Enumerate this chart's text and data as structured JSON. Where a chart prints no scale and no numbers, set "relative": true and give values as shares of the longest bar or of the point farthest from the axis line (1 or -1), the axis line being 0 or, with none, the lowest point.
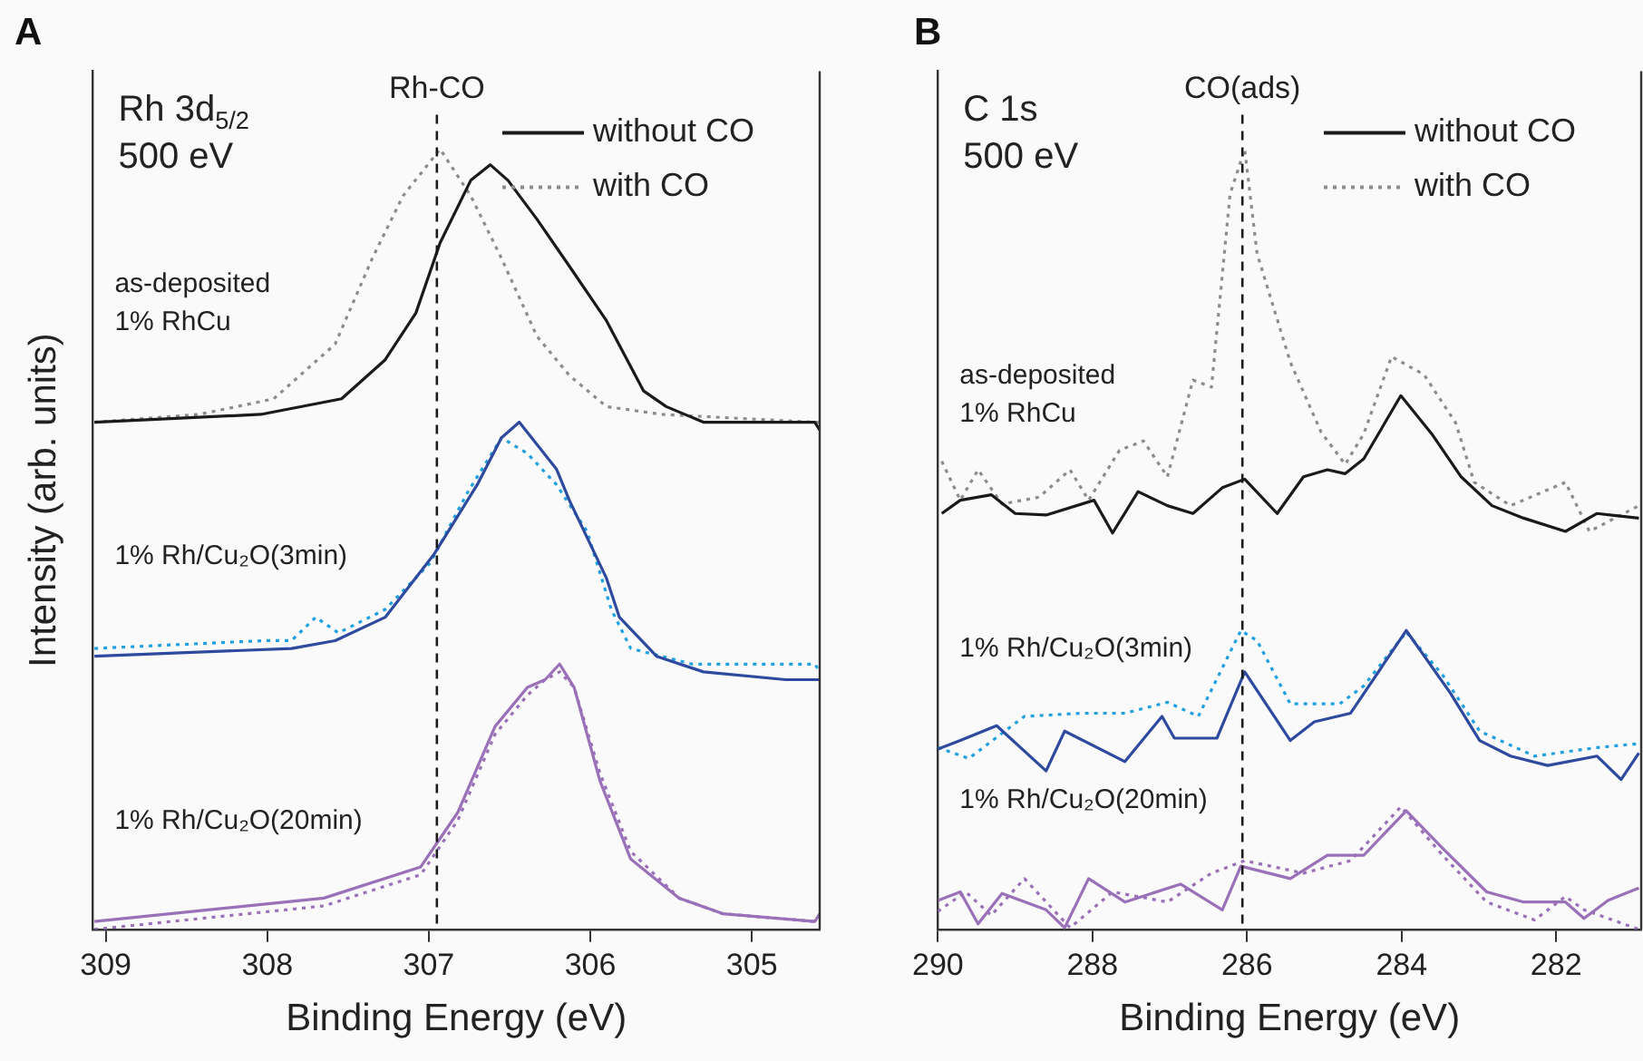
{
  "chart_data": [
    {
      "type": "line",
      "title": "A",
      "xlabel": "Binding Energy (eV)",
      "ylabel": "Intensity (arb. units)",
      "relative": true,
      "xlim": [
        309.08,
        304.58
      ],
      "xticks": [
        309,
        308,
        307,
        306,
        305
      ],
      "legend": "top right",
      "annotations": [
        "Rh 3d$_{5/2}$",
        "500 eV",
        "as-deposited\n1% RhCu",
        "1% Rh/Cu₂O(3min)",
        "1% Rh/Cu₂O(20min)"
      ],
      "ref_lines": [
        {
          "axis": "x",
          "value": 306.95,
          "label": "Rh-CO",
          "line_style": "dashed",
          "color": "#1a1a1a"
        }
      ],
      "series": [
        {
          "name": "without CO",
          "color": "#1a1a1a",
          "line_style": "solid",
          "x": [
            309.07,
            308.04,
            307.54,
            307.27,
            307.08,
            306.93,
            306.74,
            306.62,
            306.51,
            306.33,
            306.13,
            305.9,
            305.67,
            305.53,
            305.3,
            304.61,
            304.58
          ],
          "values": [
            0.65,
            0.66,
            0.68,
            0.73,
            0.79,
            0.88,
            0.96,
            0.98,
            0.96,
            0.91,
            0.85,
            0.78,
            0.69,
            0.67,
            0.65,
            0.65,
            0.64
          ]
        },
        {
          "name": "with CO",
          "color": "#8c8c8c",
          "line_style": "dotted",
          "x": [
            309.07,
            308.42,
            307.96,
            307.58,
            307.35,
            307.16,
            306.93,
            306.74,
            306.55,
            306.33,
            306.13,
            305.9,
            305.56,
            304.61,
            304.58
          ],
          "values": [
            0.65,
            0.66,
            0.68,
            0.75,
            0.86,
            0.94,
            1,
            0.94,
            0.86,
            0.76,
            0.71,
            0.67,
            0.66,
            0.65,
            0.65
          ]
        },
        {
          "color": "#2e4a9e",
          "line_style": "solid",
          "x": [
            309.07,
            307.85,
            307.58,
            307.27,
            306.97,
            306.82,
            306.7,
            306.55,
            306.44,
            306.21,
            306.13,
            305.9,
            305.82,
            305.59,
            305.3,
            304.79,
            304.61,
            304.58
          ],
          "values": [
            0.35,
            0.36,
            0.37,
            0.4,
            0.48,
            0.53,
            0.57,
            0.63,
            0.65,
            0.59,
            0.55,
            0.45,
            0.4,
            0.35,
            0.33,
            0.32,
            0.32,
            0.32
          ]
        },
        {
          "color": "#1fa0e0",
          "line_style": "dotted",
          "x": [
            309.07,
            308.02,
            307.85,
            307.7,
            307.56,
            307.27,
            306.99,
            306.76,
            306.55,
            306.39,
            306.21,
            306.02,
            305.87,
            305.75,
            305.37,
            304.61,
            304.58
          ],
          "values": [
            0.36,
            0.37,
            0.37,
            0.4,
            0.38,
            0.41,
            0.47,
            0.56,
            0.63,
            0.61,
            0.57,
            0.51,
            0.41,
            0.36,
            0.34,
            0.34,
            0.33
          ]
        },
        {
          "color": "#9a70b8",
          "line_style": "solid",
          "x": [
            309.07,
            307.65,
            307.05,
            306.82,
            306.59,
            306.39,
            306.28,
            306.19,
            306.1,
            305.94,
            305.75,
            305.45,
            305.18,
            304.61,
            304.58
          ],
          "values": [
            0.01,
            0.04,
            0.08,
            0.15,
            0.26,
            0.31,
            0.32,
            0.34,
            0.31,
            0.19,
            0.09,
            0.04,
            0.02,
            0.01,
            0.02
          ]
        },
        {
          "color": "#9a70b8",
          "line_style": "dotted",
          "x": [
            309.07,
            307.65,
            307.05,
            306.82,
            306.59,
            306.39,
            306.28,
            306.19,
            306.1,
            305.94,
            305.75,
            305.45,
            305.18,
            304.61,
            304.58
          ],
          "values": [
            0,
            0.03,
            0.07,
            0.14,
            0.25,
            0.3,
            0.32,
            0.33,
            0.31,
            0.2,
            0.1,
            0.04,
            0.02,
            0.01,
            0.01
          ]
        }
      ]
    },
    {
      "type": "line",
      "title": "B",
      "xlabel": "Binding Energy (eV)",
      "relative": true,
      "xlim": [
        290,
        280.9
      ],
      "xticks": [
        290,
        288,
        286,
        284,
        282
      ],
      "legend": "top right",
      "annotations": [
        "C 1s",
        "500 eV",
        "as-deposited\n1% RhCu",
        "1% Rh/Cu₂O(3min)",
        "1% Rh/Cu₂O(20min)"
      ],
      "ref_lines": [
        {
          "axis": "x",
          "value": 286.06,
          "label": "CO(ads)",
          "line_style": "dashed",
          "color": "#1a1a1a"
        }
      ],
      "series": [
        {
          "name": "without CO",
          "color": "#1a1a1a",
          "line_style": "solid",
          "x": [
            289.95,
            289.71,
            289.31,
            289.0,
            288.6,
            287.98,
            287.74,
            287.41,
            287.03,
            286.7,
            286.32,
            286.03,
            285.61,
            285.27,
            284.96,
            284.73,
            284.49,
            284.01,
            283.61,
            283.23,
            282.83,
            282.42,
            281.88,
            281.47,
            280.93
          ],
          "values": [
            0.533,
            0.55,
            0.557,
            0.533,
            0.531,
            0.55,
            0.508,
            0.561,
            0.543,
            0.533,
            0.566,
            0.577,
            0.533,
            0.58,
            0.589,
            0.584,
            0.603,
            0.684,
            0.635,
            0.58,
            0.543,
            0.527,
            0.51,
            0.533,
            0.527
          ]
        },
        {
          "name": "with CO",
          "color": "#8c8c8c",
          "line_style": "dotted",
          "x": [
            289.95,
            289.71,
            289.48,
            289.17,
            288.69,
            288.29,
            288.05,
            287.65,
            287.34,
            287.03,
            286.7,
            286.46,
            286.22,
            286.03,
            285.87,
            285.44,
            285.04,
            284.73,
            284.49,
            284.13,
            283.71,
            283.3,
            283.06,
            282.59,
            281.88,
            281.57,
            280.93
          ],
          "values": [
            0.6,
            0.55,
            0.589,
            0.545,
            0.554,
            0.589,
            0.55,
            0.614,
            0.626,
            0.58,
            0.704,
            0.695,
            0.942,
            1,
            0.866,
            0.727,
            0.637,
            0.596,
            0.635,
            0.734,
            0.711,
            0.649,
            0.573,
            0.543,
            0.573,
            0.51,
            0.543
          ]
        },
        {
          "color": "#2e4a9e",
          "line_style": "solid",
          "x": [
            290,
            289.71,
            289.24,
            288.6,
            288.36,
            287.58,
            287.1,
            286.94,
            286.39,
            286.03,
            285.44,
            285.13,
            284.66,
            283.94,
            283.37,
            282.99,
            282.59,
            282.11,
            281.47,
            281.16,
            280.93
          ],
          "values": [
            0.231,
            0.242,
            0.261,
            0.203,
            0.254,
            0.215,
            0.273,
            0.245,
            0.245,
            0.33,
            0.242,
            0.266,
            0.277,
            0.383,
            0.303,
            0.242,
            0.222,
            0.21,
            0.222,
            0.192,
            0.226
          ]
        },
        {
          "color": "#1fa0e0",
          "line_style": "dotted",
          "x": [
            290,
            289.6,
            288.88,
            288.12,
            287.58,
            287.03,
            286.63,
            286.08,
            285.87,
            285.44,
            284.8,
            284.49,
            283.94,
            283.47,
            282.99,
            282.28,
            281.47,
            280.93
          ],
          "values": [
            0.233,
            0.219,
            0.273,
            0.277,
            0.277,
            0.291,
            0.273,
            0.383,
            0.37,
            0.289,
            0.289,
            0.312,
            0.381,
            0.326,
            0.254,
            0.222,
            0.233,
            0.238
          ]
        },
        {
          "color": "#9a70b8",
          "line_style": "solid",
          "x": [
            290,
            289.71,
            289.48,
            289.17,
            288.6,
            288.36,
            288.05,
            287.58,
            286.86,
            286.32,
            286.08,
            285.44,
            284.96,
            284.49,
            283.94,
            283.47,
            282.9,
            282.42,
            281.88,
            281.64,
            281.33,
            280.93
          ],
          "values": [
            0.037,
            0.048,
            0.007,
            0.046,
            0.025,
            0.002,
            0.065,
            0.035,
            0.058,
            0.025,
            0.081,
            0.065,
            0.095,
            0.095,
            0.152,
            0.104,
            0.048,
            0.035,
            0.035,
            0.014,
            0.037,
            0.053
          ]
        },
        {
          "color": "#9a70b8",
          "line_style": "dotted",
          "x": [
            290,
            289.64,
            289.31,
            288.88,
            288.29,
            287.74,
            287.03,
            286.46,
            286.03,
            285.27,
            284.66,
            284.01,
            283.47,
            282.9,
            282.28,
            281.88,
            281.64,
            280.93
          ],
          "values": [
            0.023,
            0.048,
            0.018,
            0.065,
            0.002,
            0.048,
            0.035,
            0.072,
            0.088,
            0.072,
            0.088,
            0.157,
            0.095,
            0.035,
            0.012,
            0.042,
            0.025,
            0
          ]
        }
      ]
    }
  ]
}
